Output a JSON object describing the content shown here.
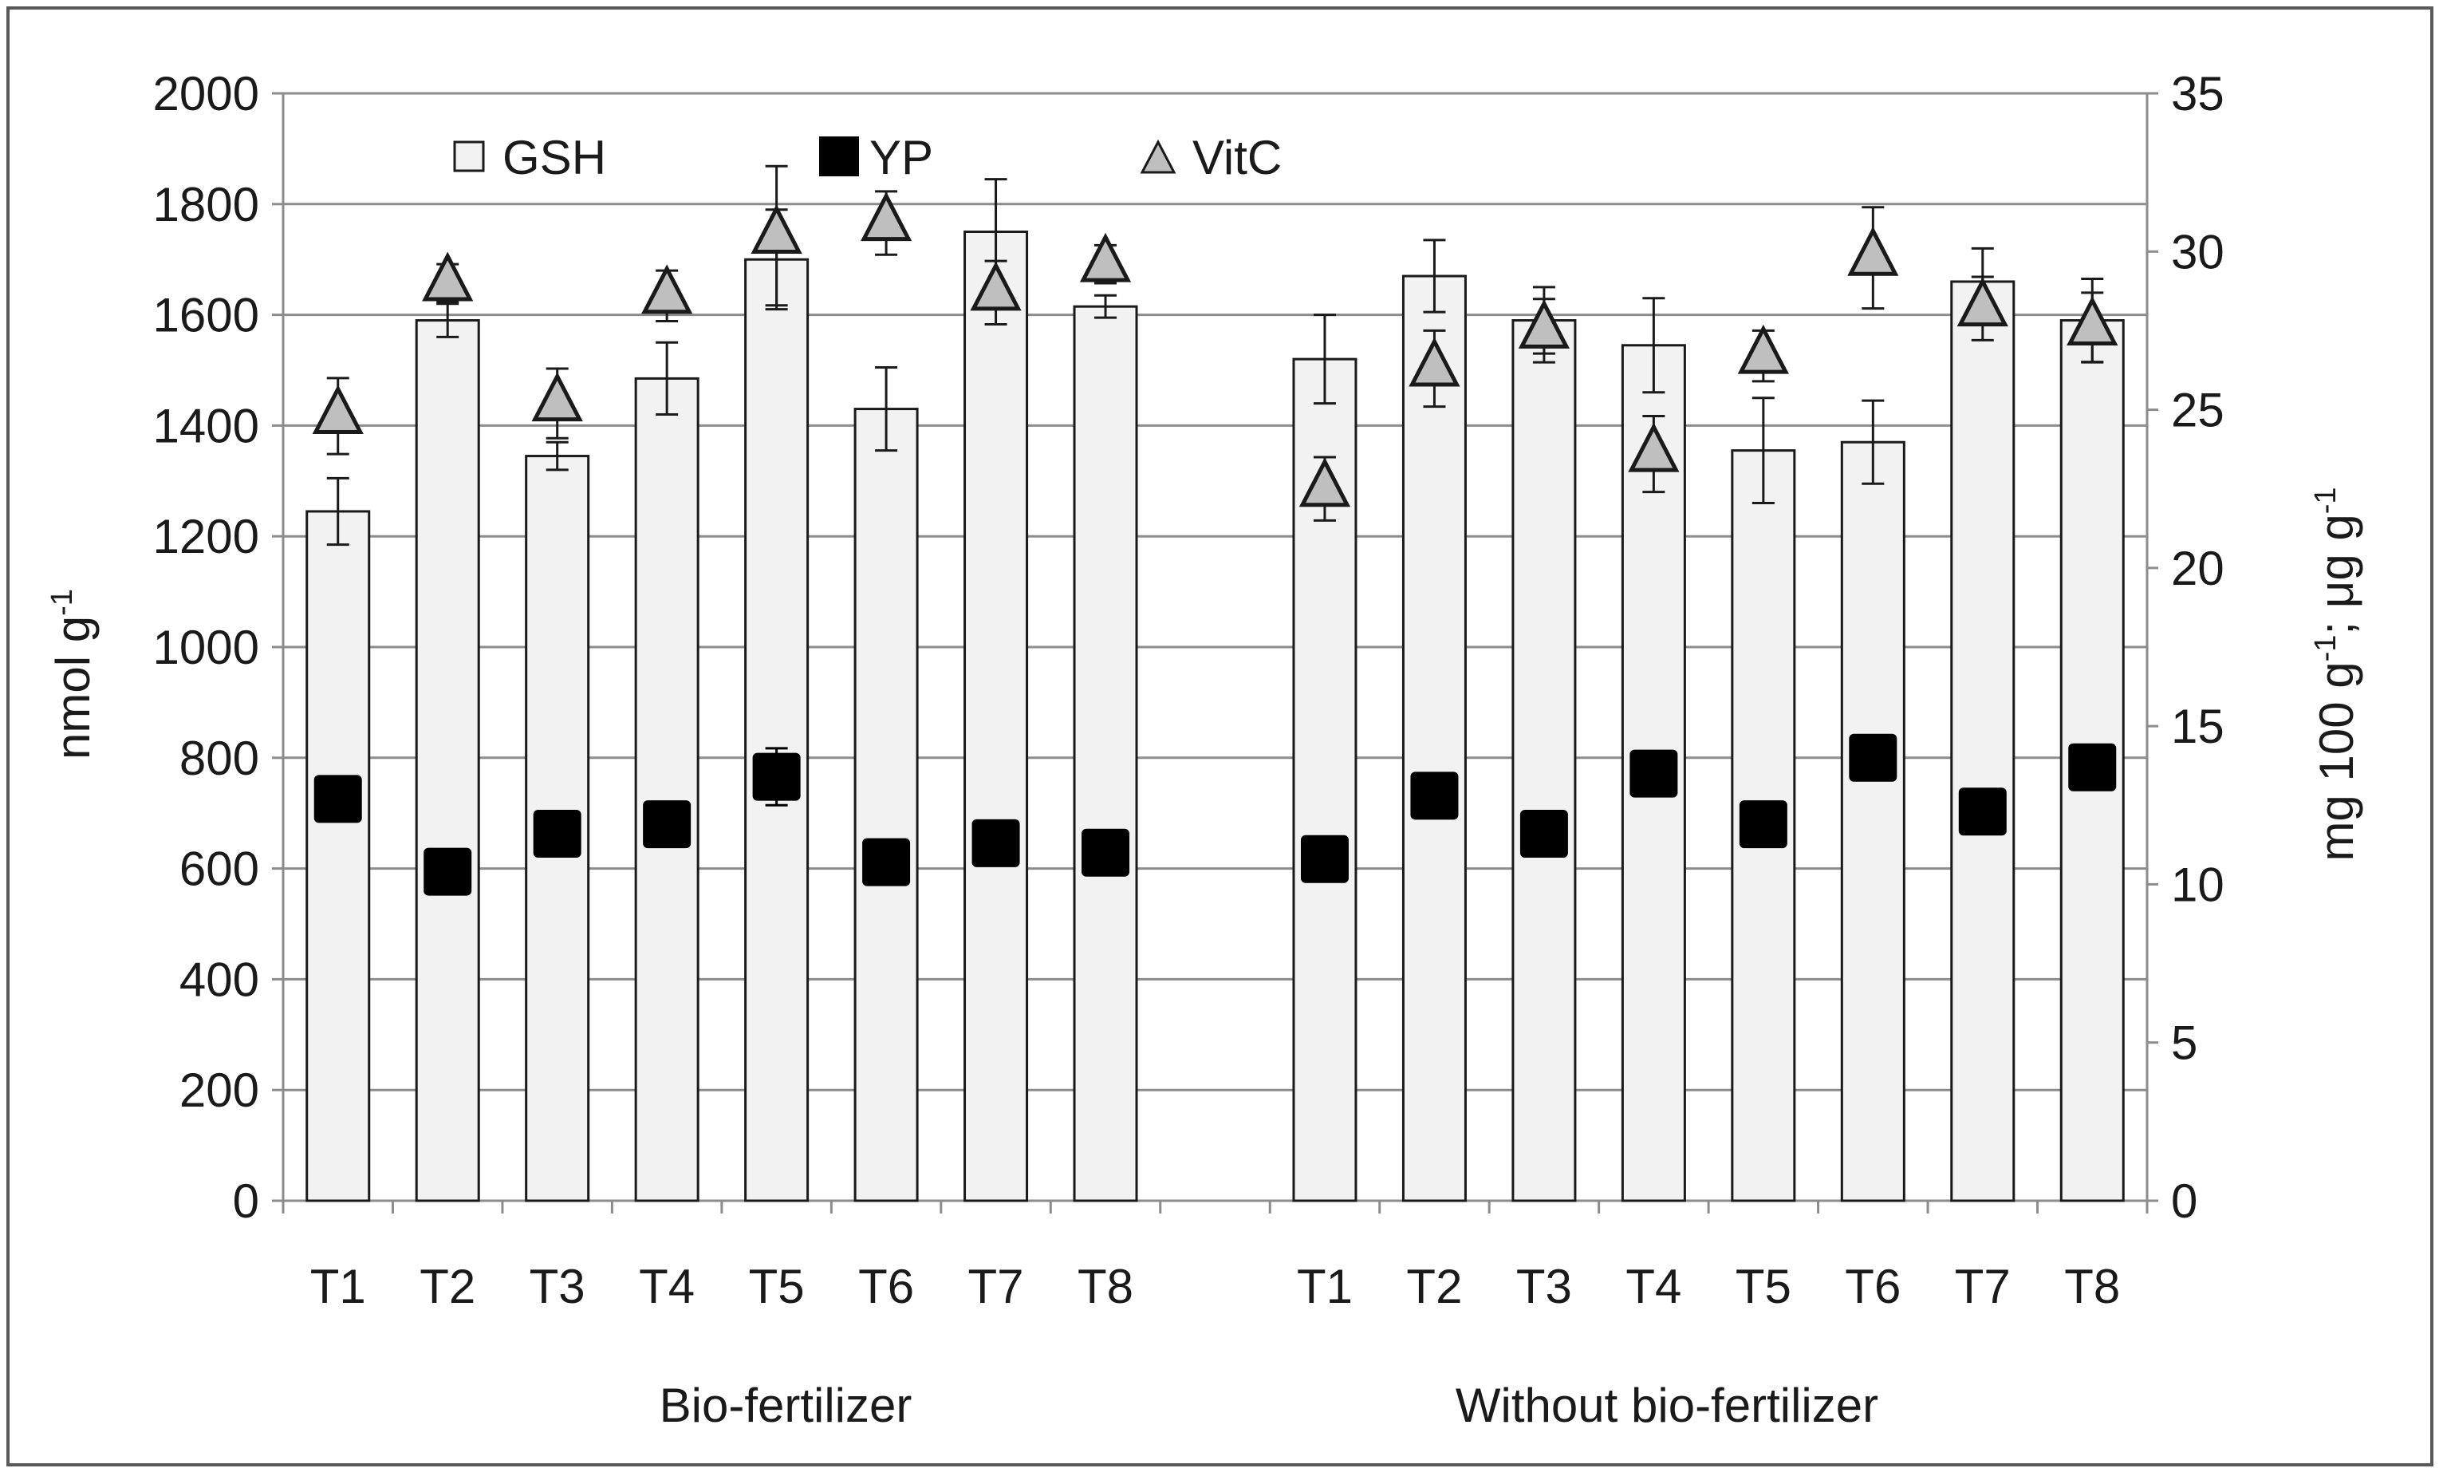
{
  "chart_data": {
    "type": "bar",
    "groups": [
      "Bio-fertilizer",
      "Without bio-fertilizer"
    ],
    "categories": [
      "T1",
      "T2",
      "T3",
      "T4",
      "T5",
      "T6",
      "T7",
      "T8"
    ],
    "y_left": {
      "label_main": "nmol g",
      "label_sup": "-1",
      "lim": [
        0,
        2000
      ],
      "ticks": [
        "0",
        "200",
        "400",
        "600",
        "800",
        "1000",
        "1200",
        "1400",
        "1600",
        "1800",
        "2000"
      ]
    },
    "y_right": {
      "label_part1": "mg 100 g",
      "label_sup1": "-1",
      "label_part2": "; μg g",
      "label_sup2": "-1",
      "lim": [
        0,
        35
      ],
      "ticks": [
        "0",
        "5",
        "10",
        "15",
        "20",
        "25",
        "30",
        "35"
      ]
    },
    "legend": [
      {
        "key": "gsh",
        "label": "GSH",
        "marker": "open-square"
      },
      {
        "key": "yp",
        "label": "YP",
        "marker": "filled-square"
      },
      {
        "key": "vitc",
        "label": "VitC",
        "marker": "triangle"
      }
    ],
    "series": [
      {
        "name": "GSH",
        "kind": "bar",
        "axis": "left",
        "color": "#f2f2f2",
        "edge": "#1a1a1a",
        "values": [
          [
            1245,
            1590,
            1345,
            1485,
            1700,
            1430,
            1750,
            1615
          ],
          [
            1520,
            1670,
            1590,
            1545,
            1355,
            1370,
            1660,
            1590
          ]
        ],
        "errors": [
          [
            60,
            30,
            25,
            65,
            90,
            75,
            95,
            20
          ],
          [
            80,
            65,
            60,
            85,
            95,
            75,
            60,
            75
          ]
        ]
      },
      {
        "name": "YP",
        "kind": "marker",
        "axis": "right",
        "color": "#000000",
        "values": [
          [
            12.7,
            10.4,
            11.6,
            11.9,
            13.4,
            10.7,
            11.3,
            11.0
          ],
          [
            10.8,
            12.8,
            11.6,
            13.5,
            11.9,
            14.0,
            12.3,
            13.7
          ]
        ],
        "errors": [
          [
            0.4,
            0.3,
            0.4,
            0.4,
            0.9,
            0.4,
            0.4,
            0.3
          ],
          [
            0.3,
            0.5,
            0.4,
            0.5,
            0.4,
            0.4,
            0.4,
            0.4
          ]
        ]
      },
      {
        "name": "VitC",
        "kind": "marker",
        "axis": "right",
        "color": "#bfbfbf",
        "edge": "#1a1a1a",
        "values": [
          [
            24.8,
            29.0,
            25.2,
            28.6,
            30.5,
            30.9,
            28.7,
            29.6
          ],
          [
            22.5,
            26.3,
            27.5,
            23.6,
            26.7,
            29.8,
            28.2,
            27.6
          ]
        ],
        "errors": [
          [
            1.2,
            0.6,
            1.1,
            0.8,
            2.2,
            1.0,
            1.0,
            0.6
          ],
          [
            1.0,
            1.2,
            1.0,
            1.2,
            0.8,
            1.6,
            1.0,
            1.1
          ]
        ]
      }
    ]
  }
}
